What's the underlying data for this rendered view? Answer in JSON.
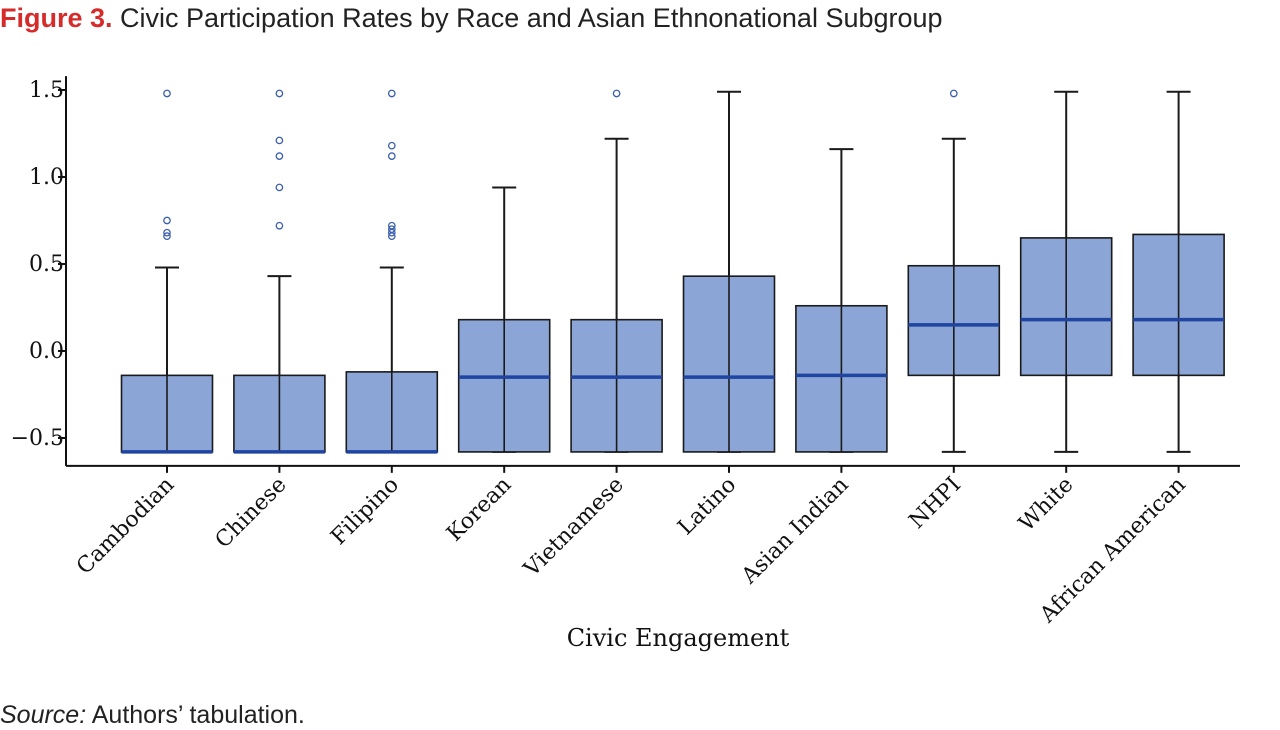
{
  "header": {
    "figure_label": "Figure 3.",
    "title": "Civic Participation Rates by Race and Asian Ethnonational Subgroup"
  },
  "source": {
    "label": "Source:",
    "text": "Authors’ tabulation."
  },
  "chart_data": {
    "type": "box",
    "title": "Civic Participation Rates by Race and Asian Ethnonational Subgroup",
    "xlabel": "Civic Engagement",
    "ylabel": "",
    "ylim": [
      -0.66,
      1.58
    ],
    "yticks": [
      1.5,
      1.0,
      0.5,
      0.0,
      -0.5
    ],
    "ytick_labels": [
      "1.5",
      "1.0",
      "0.5",
      "0.0",
      "−0.5"
    ],
    "grid": false,
    "colors": {
      "box_fill": "#8aa5d6",
      "box_edge": "#1a1a1a",
      "median": "#1f45a0",
      "outlier": "#3a5fae",
      "whisker": "#1a1a1a"
    },
    "categories": [
      "Cambodian",
      "Chinese",
      "Filipino",
      "Korean",
      "Vietnamese",
      "Latino",
      "Asian Indian",
      "NHPI",
      "White",
      "African American"
    ],
    "boxes": [
      {
        "category": "Cambodian",
        "whisker_low": -0.58,
        "q1": -0.58,
        "median": -0.58,
        "q3": -0.14,
        "whisker_high": 0.48,
        "outliers": [
          0.66,
          0.68,
          0.75,
          1.48
        ]
      },
      {
        "category": "Chinese",
        "whisker_low": -0.58,
        "q1": -0.58,
        "median": -0.58,
        "q3": -0.14,
        "whisker_high": 0.43,
        "outliers": [
          0.72,
          0.94,
          1.12,
          1.21,
          1.48
        ]
      },
      {
        "category": "Filipino",
        "whisker_low": -0.58,
        "q1": -0.58,
        "median": -0.58,
        "q3": -0.12,
        "whisker_high": 0.48,
        "outliers": [
          0.66,
          0.68,
          0.7,
          0.72,
          1.12,
          1.18,
          1.48
        ]
      },
      {
        "category": "Korean",
        "whisker_low": -0.58,
        "q1": -0.58,
        "median": -0.15,
        "q3": 0.18,
        "whisker_high": 0.94,
        "outliers": []
      },
      {
        "category": "Vietnamese",
        "whisker_low": -0.58,
        "q1": -0.58,
        "median": -0.15,
        "q3": 0.18,
        "whisker_high": 1.22,
        "outliers": [
          1.48
        ]
      },
      {
        "category": "Latino",
        "whisker_low": -0.58,
        "q1": -0.58,
        "median": -0.15,
        "q3": 0.43,
        "whisker_high": 1.49,
        "outliers": []
      },
      {
        "category": "Asian Indian",
        "whisker_low": -0.58,
        "q1": -0.58,
        "median": -0.14,
        "q3": 0.26,
        "whisker_high": 1.16,
        "outliers": []
      },
      {
        "category": "NHPI",
        "whisker_low": -0.58,
        "q1": -0.14,
        "median": 0.15,
        "q3": 0.49,
        "whisker_high": 1.22,
        "outliers": [
          1.48
        ]
      },
      {
        "category": "White",
        "whisker_low": -0.58,
        "q1": -0.14,
        "median": 0.18,
        "q3": 0.65,
        "whisker_high": 1.49,
        "outliers": []
      },
      {
        "category": "African American",
        "whisker_low": -0.58,
        "q1": -0.14,
        "median": 0.18,
        "q3": 0.67,
        "whisker_high": 1.49,
        "outliers": []
      }
    ]
  }
}
